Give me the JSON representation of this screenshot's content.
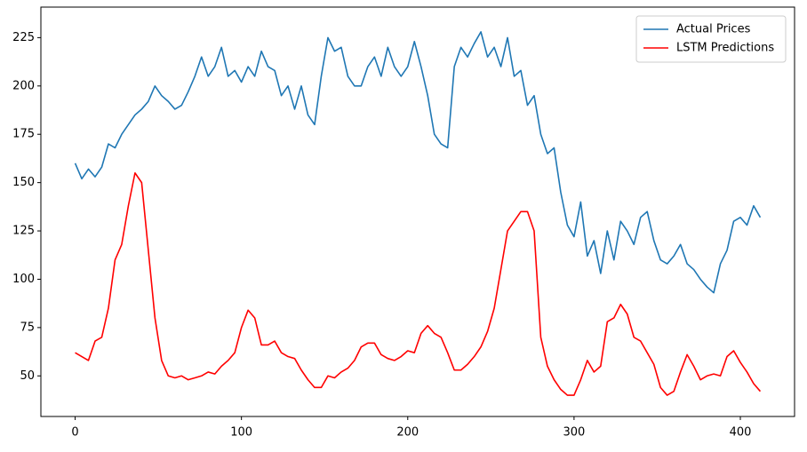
{
  "chart_data": {
    "type": "line",
    "x": [
      0,
      4,
      8,
      12,
      16,
      20,
      24,
      28,
      32,
      36,
      40,
      44,
      48,
      52,
      56,
      60,
      64,
      68,
      72,
      76,
      80,
      84,
      88,
      92,
      96,
      100,
      104,
      108,
      112,
      116,
      120,
      124,
      128,
      132,
      136,
      140,
      144,
      148,
      152,
      156,
      160,
      164,
      168,
      172,
      176,
      180,
      184,
      188,
      192,
      196,
      200,
      204,
      208,
      212,
      216,
      220,
      224,
      228,
      232,
      236,
      240,
      244,
      248,
      252,
      256,
      260,
      264,
      268,
      272,
      276,
      280,
      284,
      288,
      292,
      296,
      300,
      304,
      308,
      312,
      316,
      320,
      324,
      328,
      332,
      336,
      340,
      344,
      348,
      352,
      356,
      360,
      364,
      368,
      372,
      376,
      380,
      384,
      388,
      392,
      396,
      400,
      404,
      408,
      412
    ],
    "series": [
      {
        "name": "Actual Prices",
        "color": "#1f77b4",
        "values": [
          160,
          152,
          157,
          153,
          158,
          170,
          168,
          175,
          180,
          185,
          188,
          192,
          200,
          195,
          192,
          188,
          190,
          197,
          205,
          215,
          205,
          210,
          220,
          205,
          208,
          202,
          210,
          205,
          218,
          210,
          208,
          195,
          200,
          188,
          200,
          185,
          180,
          205,
          225,
          218,
          220,
          205,
          200,
          200,
          210,
          215,
          205,
          220,
          210,
          205,
          210,
          223,
          210,
          195,
          175,
          170,
          168,
          210,
          220,
          215,
          222,
          228,
          215,
          220,
          210,
          225,
          205,
          208,
          190,
          195,
          175,
          165,
          168,
          145,
          128,
          122,
          140,
          112,
          120,
          103,
          125,
          110,
          130,
          125,
          118,
          132,
          135,
          120,
          110,
          108,
          112,
          118,
          108,
          105,
          100,
          96,
          93,
          108,
          115,
          130,
          132,
          128,
          138,
          132
        ]
      },
      {
        "name": "LSTM Predictions",
        "color": "#ff0000",
        "values": [
          62,
          60,
          58,
          68,
          70,
          85,
          110,
          118,
          138,
          155,
          150,
          115,
          80,
          58,
          50,
          49,
          50,
          48,
          49,
          50,
          52,
          51,
          55,
          58,
          62,
          75,
          84,
          80,
          66,
          66,
          68,
          62,
          60,
          59,
          53,
          48,
          44,
          44,
          50,
          49,
          52,
          54,
          58,
          65,
          67,
          67,
          61,
          59,
          58,
          60,
          63,
          62,
          72,
          76,
          72,
          70,
          62,
          53,
          53,
          56,
          60,
          65,
          73,
          85,
          105,
          125,
          130,
          135,
          135,
          125,
          70,
          55,
          48,
          43,
          40,
          40,
          48,
          58,
          52,
          55,
          78,
          80,
          87,
          82,
          70,
          68,
          62,
          56,
          44,
          40,
          42,
          52,
          61,
          55,
          48,
          50,
          51,
          50,
          60,
          63,
          57,
          52,
          46,
          42
        ]
      }
    ],
    "xlim": [
      -20.6,
      432.6
    ],
    "ylim": [
      29,
      240.8
    ],
    "xticks": [
      0,
      100,
      200,
      300,
      400
    ],
    "yticks": [
      50,
      75,
      100,
      125,
      150,
      175,
      200,
      225
    ],
    "legend": "upper right"
  }
}
